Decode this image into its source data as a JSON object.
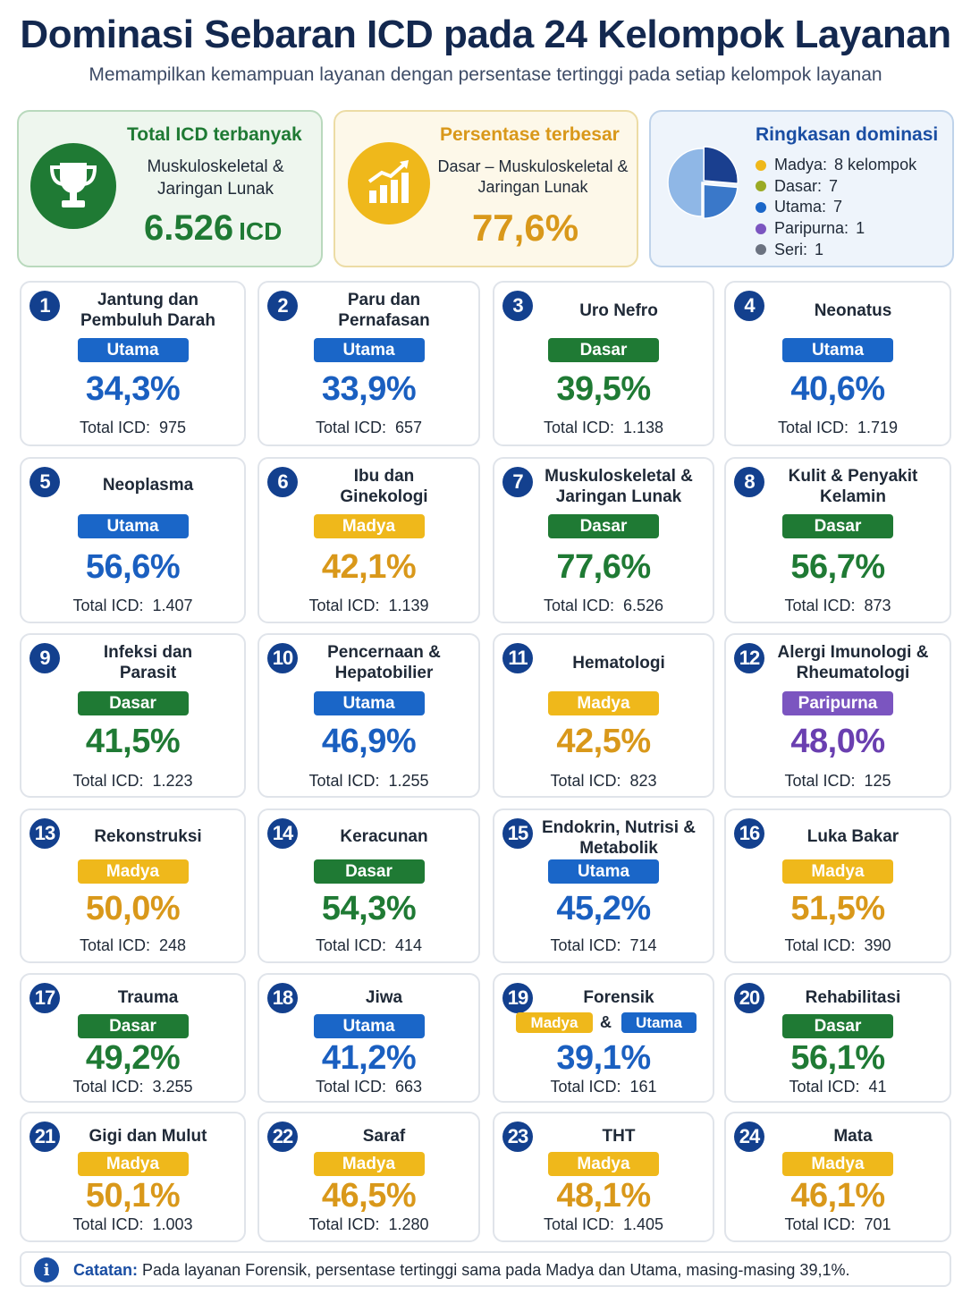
{
  "header": {
    "title": "Dominasi Sebaran ICD pada 24 Kelompok Layanan",
    "subtitle": "Memampilkan kemampuan layanan dengan persentase tertinggi pada setiap kelompok layanan"
  },
  "summary": {
    "total_icd": {
      "heading": "Total ICD terbanyak",
      "label_line1": "Muskuloskeletal &",
      "label_line2": "Jaringan Lunak",
      "value": "6.526",
      "unit": "ICD",
      "icon": "trophy-icon"
    },
    "largest_pct": {
      "heading": "Persentase terbesar",
      "label_line1": "Dasar – Muskuloskeletal &",
      "label_line2": "Jaringan Lunak",
      "value": "77,6%",
      "icon": "growth-chart-icon"
    },
    "dominance": {
      "heading": "Ringkasan dominasi",
      "items": [
        {
          "label": "Madya:",
          "value": "8 kelompok",
          "count": 8,
          "color": "#efb81b"
        },
        {
          "label": "Dasar:",
          "value": "7",
          "count": 7,
          "color": "#9aaa24"
        },
        {
          "label": "Utama:",
          "value": "7",
          "count": 7,
          "color": "#1a66c8"
        },
        {
          "label": "Paripurna:",
          "value": "1",
          "count": 1,
          "color": "#7b55c0"
        },
        {
          "label": "Seri:",
          "value": "1",
          "count": 1,
          "color": "#6b7280"
        }
      ]
    }
  },
  "colors": {
    "Utama": "#1a66c8",
    "Dasar": "#1f7a34",
    "Madya": "#efb81b",
    "Paripurna": "#7b55c0",
    "pct_Utama": "#1a5fc0",
    "pct_Dasar": "#1f7a34",
    "pct_Madya": "#d9981a",
    "pct_Paripurna": "#6a3fb0"
  },
  "total_label": "Total ICD:",
  "cards": [
    {
      "num": "1",
      "name_lines": [
        "Jantung dan",
        "Pembuluh Darah"
      ],
      "level": "Utama",
      "pct": "34,3%",
      "total": "975"
    },
    {
      "num": "2",
      "name_lines": [
        "Paru dan",
        "Pernafasan"
      ],
      "level": "Utama",
      "pct": "33,9%",
      "total": "657"
    },
    {
      "num": "3",
      "name_lines": [
        "Uro Nefro"
      ],
      "level": "Dasar",
      "pct": "39,5%",
      "total": "1.138"
    },
    {
      "num": "4",
      "name_lines": [
        "Neonatus"
      ],
      "level": "Utama",
      "pct": "40,6%",
      "total": "1.719"
    },
    {
      "num": "5",
      "name_lines": [
        "Neoplasma"
      ],
      "level": "Utama",
      "pct": "56,6%",
      "total": "1.407"
    },
    {
      "num": "6",
      "name_lines": [
        "Ibu dan",
        "Ginekologi"
      ],
      "level": "Madya",
      "pct": "42,1%",
      "total": "1.139"
    },
    {
      "num": "7",
      "name_lines": [
        "Muskuloskeletal &",
        "Jaringan Lunak"
      ],
      "level": "Dasar",
      "pct": "77,6%",
      "total": "6.526"
    },
    {
      "num": "8",
      "name_lines": [
        "Kulit & Penyakit",
        "Kelamin"
      ],
      "level": "Dasar",
      "pct": "56,7%",
      "total": "873"
    },
    {
      "num": "9",
      "name_lines": [
        "Infeksi dan",
        "Parasit"
      ],
      "level": "Dasar",
      "pct": "41,5%",
      "total": "1.223"
    },
    {
      "num": "10",
      "name_lines": [
        "Pencernaan &",
        "Hepatobilier"
      ],
      "level": "Utama",
      "pct": "46,9%",
      "total": "1.255"
    },
    {
      "num": "11",
      "name_lines": [
        "Hematologi"
      ],
      "level": "Madya",
      "pct": "42,5%",
      "total": "823"
    },
    {
      "num": "12",
      "name_lines": [
        "Alergi Imunologi &",
        "Rheumatologi"
      ],
      "level": "Paripurna",
      "pct": "48,0%",
      "total": "125"
    },
    {
      "num": "13",
      "name_lines": [
        "Rekonstruksi"
      ],
      "level": "Madya",
      "pct": "50,0%",
      "total": "248"
    },
    {
      "num": "14",
      "name_lines": [
        "Keracunan"
      ],
      "level": "Dasar",
      "pct": "54,3%",
      "total": "414"
    },
    {
      "num": "15",
      "name_lines": [
        "Endokrin, Nutrisi &",
        "Metabolik"
      ],
      "level": "Utama",
      "pct": "45,2%",
      "total": "714"
    },
    {
      "num": "16",
      "name_lines": [
        "Luka Bakar"
      ],
      "level": "Madya",
      "pct": "51,5%",
      "total": "390"
    },
    {
      "num": "17",
      "name_lines": [
        "Trauma"
      ],
      "level": "Dasar",
      "pct": "49,2%",
      "total": "3.255"
    },
    {
      "num": "18",
      "name_lines": [
        "Jiwa"
      ],
      "level": "Utama",
      "pct": "41,2%",
      "total": "663"
    },
    {
      "num": "19",
      "name_lines": [
        "Forensik"
      ],
      "level": "Madya",
      "level2": "Utama",
      "pct": "39,1%",
      "total": "161"
    },
    {
      "num": "20",
      "name_lines": [
        "Rehabilitasi"
      ],
      "level": "Dasar",
      "pct": "56,1%",
      "total": "41"
    },
    {
      "num": "21",
      "name_lines": [
        "Gigi dan Mulut"
      ],
      "level": "Madya",
      "pct": "50,1%",
      "total": "1.003"
    },
    {
      "num": "22",
      "name_lines": [
        "Saraf"
      ],
      "level": "Madya",
      "pct": "46,5%",
      "total": "1.280"
    },
    {
      "num": "23",
      "name_lines": [
        "THT"
      ],
      "level": "Madya",
      "pct": "48,1%",
      "total": "1.405"
    },
    {
      "num": "24",
      "name_lines": [
        "Mata"
      ],
      "level": "Madya",
      "pct": "46,1%",
      "total": "701"
    }
  ],
  "note": {
    "label": "Catatan:",
    "text": "Pada layanan Forensik, persentase tertinggi sama pada Madya dan Utama, masing-masing 39,1%."
  }
}
